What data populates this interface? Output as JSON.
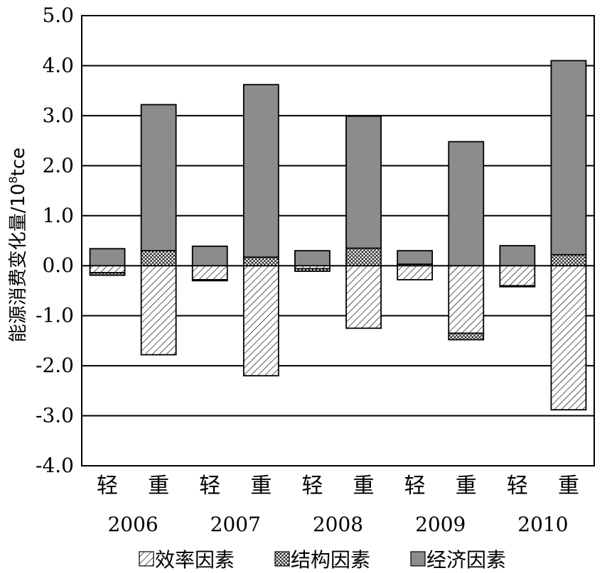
{
  "chart_data": {
    "type": "bar",
    "stacked": true,
    "ylabel": "能源消费变化量/10",
    "ylabel_sup": "8",
    "ylabel_unit": "tce",
    "ylim": [
      -4.0,
      5.0
    ],
    "yticks": [
      "5.0",
      "4.0",
      "3.0",
      "2.0",
      "1.0",
      "0.0",
      "-1.0",
      "-2.0",
      "-3.0",
      "-4.0"
    ],
    "grid": true,
    "legend_position": "bottom",
    "categories": [
      "轻",
      "重",
      "轻",
      "重",
      "轻",
      "重",
      "轻",
      "重",
      "轻",
      "重"
    ],
    "groups": [
      "2006",
      "2007",
      "2008",
      "2009",
      "2010"
    ],
    "series": [
      {
        "name": "效率因素",
        "pattern": "diagonal-hatch",
        "values": [
          -0.14,
          -1.78,
          -0.28,
          -2.2,
          -0.06,
          -1.25,
          -0.28,
          -1.35,
          -0.4,
          -2.88
        ]
      },
      {
        "name": "结构因素",
        "pattern": "crosshatch",
        "values": [
          -0.05,
          0.3,
          -0.02,
          0.17,
          -0.05,
          0.35,
          0.03,
          -0.13,
          -0.02,
          0.22
        ]
      },
      {
        "name": "经济因素",
        "color": "#8c8c8c",
        "values": [
          0.34,
          2.92,
          0.39,
          3.45,
          0.3,
          2.64,
          0.27,
          2.48,
          0.4,
          3.88
        ]
      }
    ]
  }
}
